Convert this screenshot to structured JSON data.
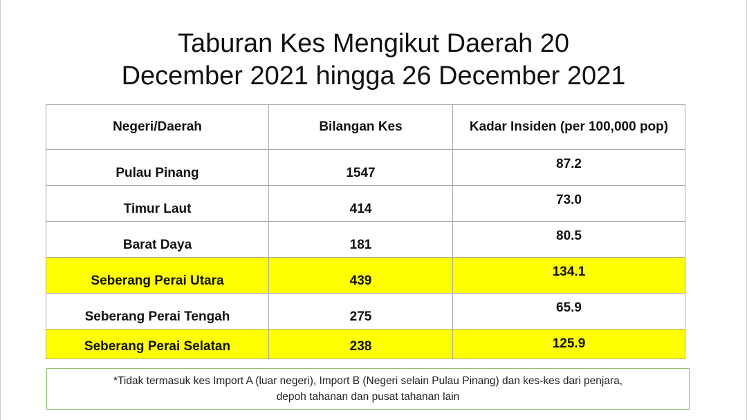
{
  "title": {
    "line1": "Taburan Kes Mengikut Daerah  20",
    "line2": "December 2021 hingga 26 December 2021"
  },
  "table": {
    "headers": [
      "Negeri/Daerah",
      "Bilangan Kes",
      "Kadar Insiden (per 100,000 pop)"
    ],
    "rows": [
      {
        "name": "Pulau Pinang",
        "cases": "1547",
        "rate": "87.2",
        "highlight": false
      },
      {
        "name": "Timur Laut",
        "cases": "414",
        "rate": "73.0",
        "highlight": false
      },
      {
        "name": "Barat Daya",
        "cases": "181",
        "rate": "80.5",
        "highlight": false
      },
      {
        "name": "Seberang Perai Utara",
        "cases": "439",
        "rate": "134.1",
        "highlight": true
      },
      {
        "name": "Seberang Perai Tengah",
        "cases": "275",
        "rate": "65.9",
        "highlight": false
      },
      {
        "name": "Seberang Perai Selatan",
        "cases": "238",
        "rate": "125.9",
        "highlight": true
      }
    ],
    "highlight_color": "#ffff00"
  },
  "note": {
    "line1": "*Tidak termasuk kes Import A (luar negeri), Import B (Negeri selain Pulau Pinang) dan kes-kes dari penjara,",
    "line2": "depoh tahanan dan pusat tahanan lain"
  }
}
